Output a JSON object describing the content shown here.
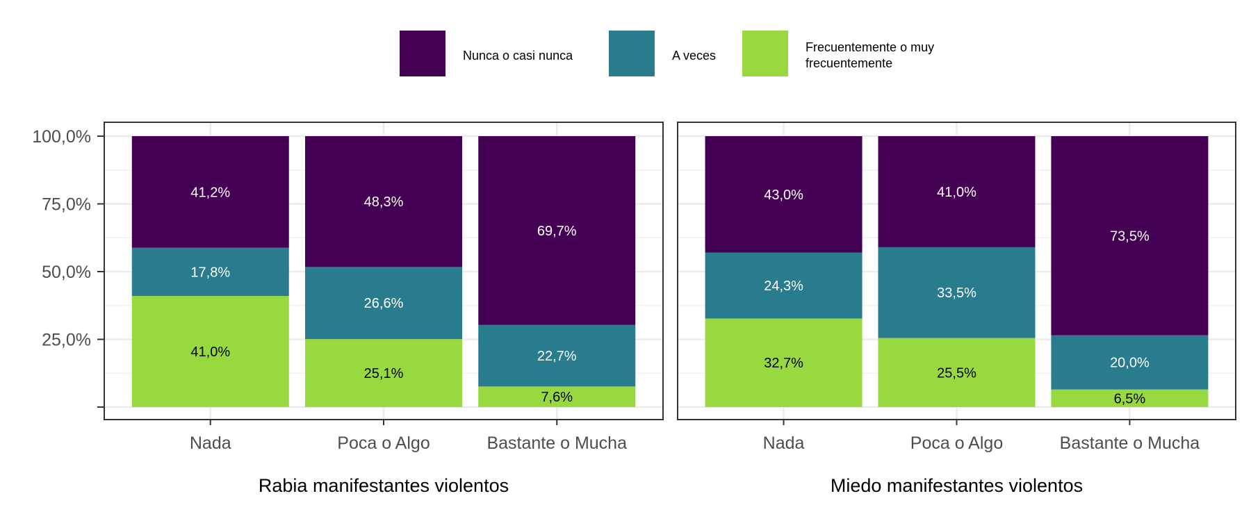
{
  "chart_data": {
    "type": "bar",
    "stacked": true,
    "legend": {
      "placement": "top",
      "entries": [
        {
          "name": "Nunca o casi nunca",
          "color": "#440154"
        },
        {
          "name": "A veces",
          "color": "#287C8E"
        },
        {
          "name": "Frecuentemente o muy frecuentemente",
          "color": "#97D93E"
        }
      ]
    },
    "y_ticks": [
      "25,0%",
      "50,0%",
      "75,0%",
      "100,0%"
    ],
    "y_tick_values": [
      25,
      50,
      75,
      100
    ],
    "ylim": [
      0,
      100
    ],
    "grid": true,
    "categories": [
      "Nada",
      "Poca o Algo",
      "Bastante o Mucha"
    ],
    "panels": [
      {
        "xlabel": "Rabia manifestantes violentos",
        "series": [
          {
            "name": "Frecuentemente o muy frecuentemente",
            "values": [
              41.0,
              25.1,
              7.6
            ],
            "labels": [
              "41,0%",
              "25,1%",
              "7,6%"
            ]
          },
          {
            "name": "A veces",
            "values": [
              17.8,
              26.6,
              22.7
            ],
            "labels": [
              "17,8%",
              "26,6%",
              "22,7%"
            ]
          },
          {
            "name": "Nunca o casi nunca",
            "values": [
              41.2,
              48.3,
              69.7
            ],
            "labels": [
              "41,2%",
              "48,3%",
              "69,7%"
            ]
          }
        ]
      },
      {
        "xlabel": "Miedo manifestantes violentos",
        "series": [
          {
            "name": "Frecuentemente o muy frecuentemente",
            "values": [
              32.7,
              25.5,
              6.5
            ],
            "labels": [
              "32,7%",
              "25,5%",
              "6,5%"
            ]
          },
          {
            "name": "A veces",
            "values": [
              24.3,
              33.5,
              20.0
            ],
            "labels": [
              "24,3%",
              "33,5%",
              "20,0%"
            ]
          },
          {
            "name": "Nunca o casi nunca",
            "values": [
              43.0,
              41.0,
              73.5
            ],
            "labels": [
              "43,0%",
              "41,0%",
              "73,5%"
            ]
          }
        ]
      }
    ]
  }
}
